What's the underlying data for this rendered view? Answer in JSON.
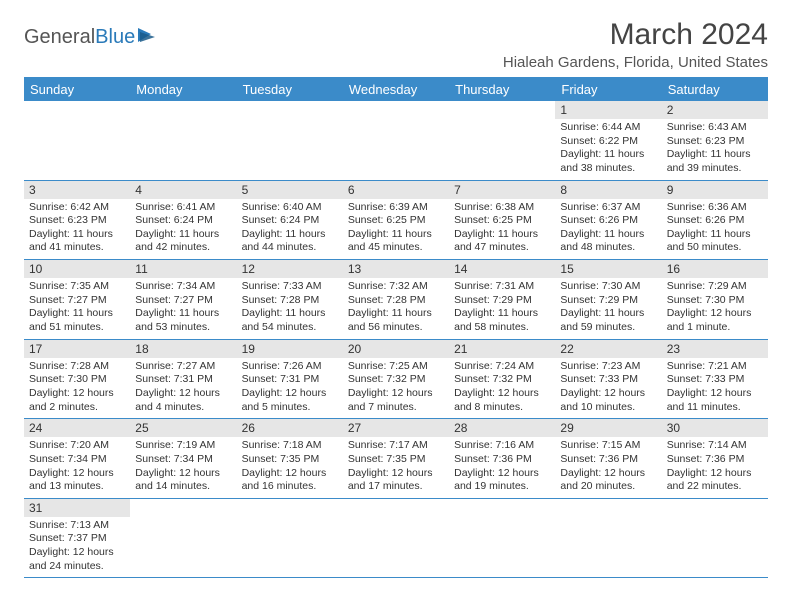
{
  "logo": {
    "text1": "General",
    "text2": "Blue"
  },
  "title": "March 2024",
  "location": "Hialeah Gardens, Florida, United States",
  "colors": {
    "header_bg": "#3b8bc9",
    "header_text": "#ffffff",
    "daynum_bg": "#e6e6e6",
    "border": "#3b8bc9",
    "logo_accent": "#2a7ab9"
  },
  "weekdays": [
    "Sunday",
    "Monday",
    "Tuesday",
    "Wednesday",
    "Thursday",
    "Friday",
    "Saturday"
  ],
  "grid": [
    [
      null,
      null,
      null,
      null,
      null,
      {
        "n": "1",
        "sr": "6:44 AM",
        "ss": "6:22 PM",
        "dl": "11 hours and 38 minutes."
      },
      {
        "n": "2",
        "sr": "6:43 AM",
        "ss": "6:23 PM",
        "dl": "11 hours and 39 minutes."
      }
    ],
    [
      {
        "n": "3",
        "sr": "6:42 AM",
        "ss": "6:23 PM",
        "dl": "11 hours and 41 minutes."
      },
      {
        "n": "4",
        "sr": "6:41 AM",
        "ss": "6:24 PM",
        "dl": "11 hours and 42 minutes."
      },
      {
        "n": "5",
        "sr": "6:40 AM",
        "ss": "6:24 PM",
        "dl": "11 hours and 44 minutes."
      },
      {
        "n": "6",
        "sr": "6:39 AM",
        "ss": "6:25 PM",
        "dl": "11 hours and 45 minutes."
      },
      {
        "n": "7",
        "sr": "6:38 AM",
        "ss": "6:25 PM",
        "dl": "11 hours and 47 minutes."
      },
      {
        "n": "8",
        "sr": "6:37 AM",
        "ss": "6:26 PM",
        "dl": "11 hours and 48 minutes."
      },
      {
        "n": "9",
        "sr": "6:36 AM",
        "ss": "6:26 PM",
        "dl": "11 hours and 50 minutes."
      }
    ],
    [
      {
        "n": "10",
        "sr": "7:35 AM",
        "ss": "7:27 PM",
        "dl": "11 hours and 51 minutes."
      },
      {
        "n": "11",
        "sr": "7:34 AM",
        "ss": "7:27 PM",
        "dl": "11 hours and 53 minutes."
      },
      {
        "n": "12",
        "sr": "7:33 AM",
        "ss": "7:28 PM",
        "dl": "11 hours and 54 minutes."
      },
      {
        "n": "13",
        "sr": "7:32 AM",
        "ss": "7:28 PM",
        "dl": "11 hours and 56 minutes."
      },
      {
        "n": "14",
        "sr": "7:31 AM",
        "ss": "7:29 PM",
        "dl": "11 hours and 58 minutes."
      },
      {
        "n": "15",
        "sr": "7:30 AM",
        "ss": "7:29 PM",
        "dl": "11 hours and 59 minutes."
      },
      {
        "n": "16",
        "sr": "7:29 AM",
        "ss": "7:30 PM",
        "dl": "12 hours and 1 minute."
      }
    ],
    [
      {
        "n": "17",
        "sr": "7:28 AM",
        "ss": "7:30 PM",
        "dl": "12 hours and 2 minutes."
      },
      {
        "n": "18",
        "sr": "7:27 AM",
        "ss": "7:31 PM",
        "dl": "12 hours and 4 minutes."
      },
      {
        "n": "19",
        "sr": "7:26 AM",
        "ss": "7:31 PM",
        "dl": "12 hours and 5 minutes."
      },
      {
        "n": "20",
        "sr": "7:25 AM",
        "ss": "7:32 PM",
        "dl": "12 hours and 7 minutes."
      },
      {
        "n": "21",
        "sr": "7:24 AM",
        "ss": "7:32 PM",
        "dl": "12 hours and 8 minutes."
      },
      {
        "n": "22",
        "sr": "7:23 AM",
        "ss": "7:33 PM",
        "dl": "12 hours and 10 minutes."
      },
      {
        "n": "23",
        "sr": "7:21 AM",
        "ss": "7:33 PM",
        "dl": "12 hours and 11 minutes."
      }
    ],
    [
      {
        "n": "24",
        "sr": "7:20 AM",
        "ss": "7:34 PM",
        "dl": "12 hours and 13 minutes."
      },
      {
        "n": "25",
        "sr": "7:19 AM",
        "ss": "7:34 PM",
        "dl": "12 hours and 14 minutes."
      },
      {
        "n": "26",
        "sr": "7:18 AM",
        "ss": "7:35 PM",
        "dl": "12 hours and 16 minutes."
      },
      {
        "n": "27",
        "sr": "7:17 AM",
        "ss": "7:35 PM",
        "dl": "12 hours and 17 minutes."
      },
      {
        "n": "28",
        "sr": "7:16 AM",
        "ss": "7:36 PM",
        "dl": "12 hours and 19 minutes."
      },
      {
        "n": "29",
        "sr": "7:15 AM",
        "ss": "7:36 PM",
        "dl": "12 hours and 20 minutes."
      },
      {
        "n": "30",
        "sr": "7:14 AM",
        "ss": "7:36 PM",
        "dl": "12 hours and 22 minutes."
      }
    ],
    [
      {
        "n": "31",
        "sr": "7:13 AM",
        "ss": "7:37 PM",
        "dl": "12 hours and 24 minutes."
      },
      null,
      null,
      null,
      null,
      null,
      null
    ]
  ],
  "labels": {
    "sunrise": "Sunrise:",
    "sunset": "Sunset:",
    "daylight": "Daylight:"
  }
}
